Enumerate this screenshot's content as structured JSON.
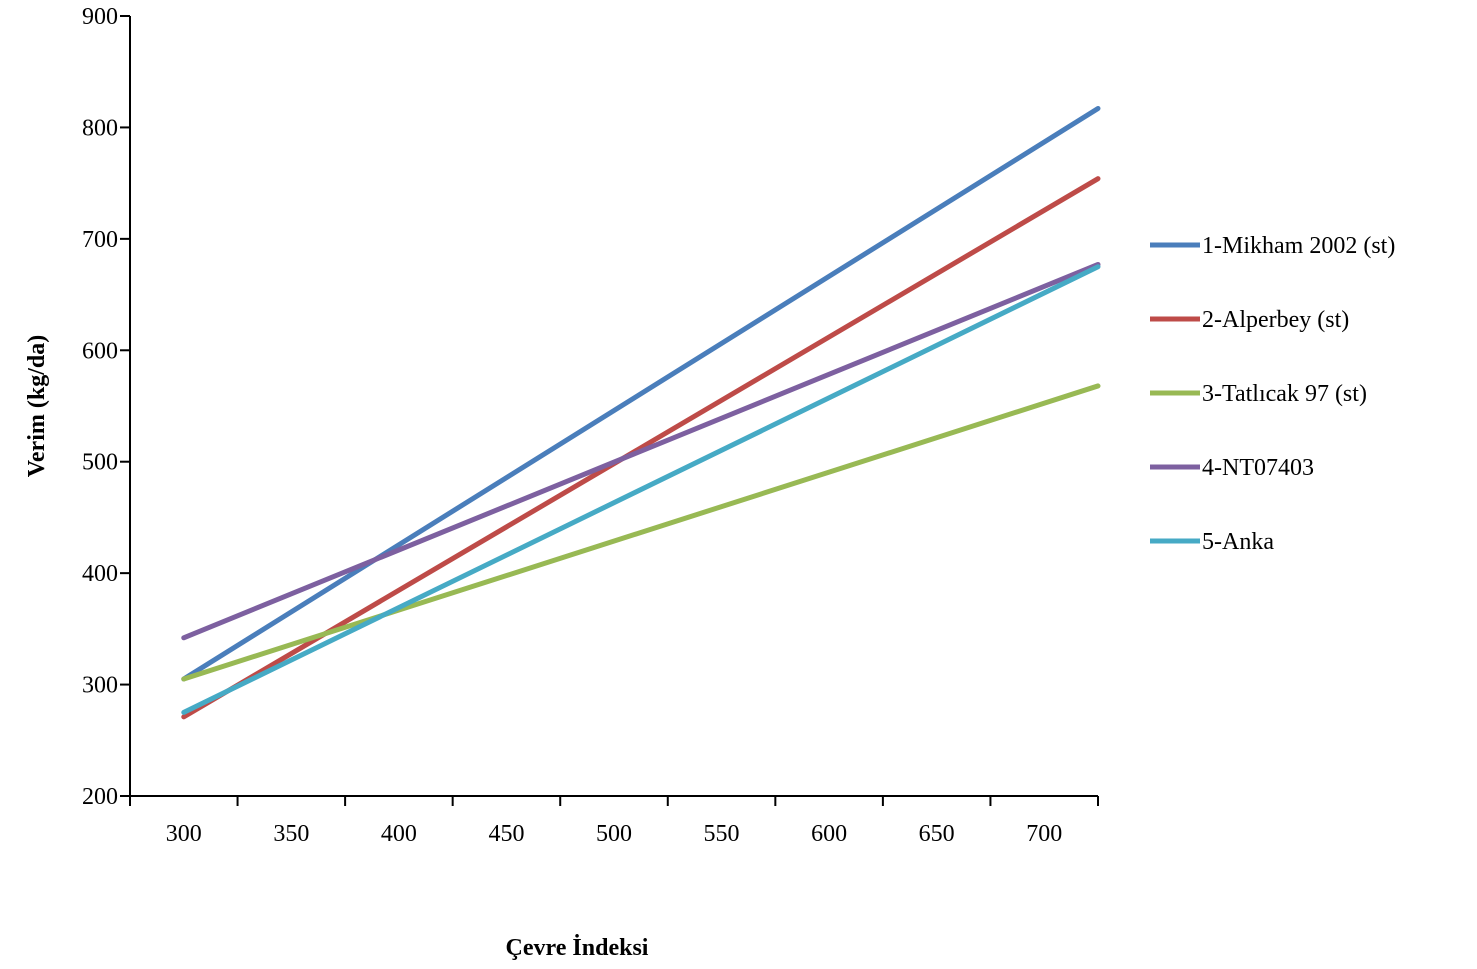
{
  "chart_data": {
    "type": "line",
    "title": "",
    "xlabel": "Çevre İndeksi",
    "ylabel": "Verim (kg/da)",
    "xlim": [
      275,
      725
    ],
    "ylim": [
      200,
      900
    ],
    "x_ticks": [
      300,
      350,
      400,
      450,
      500,
      550,
      600,
      650,
      700
    ],
    "y_ticks": [
      200,
      300,
      400,
      500,
      600,
      700,
      800,
      900
    ],
    "x_tick_labels": [
      "300",
      "350",
      "400",
      "450",
      "500",
      "550",
      "600",
      "650",
      "700"
    ],
    "y_tick_labels": [
      "200",
      "300",
      "400",
      "500",
      "600",
      "700",
      "800",
      "900"
    ],
    "grid": false,
    "legend_position": "right",
    "series": [
      {
        "name": "1-Mikham 2002 (st)",
        "color": "#4a7ebb",
        "x": [
          300,
          725
        ],
        "y": [
          305,
          817
        ]
      },
      {
        "name": "2-Alperbey (st)",
        "color": "#be4b48",
        "x": [
          300,
          725
        ],
        "y": [
          271,
          754
        ]
      },
      {
        "name": "3-Tatlıcak 97 (st)",
        "color": "#98b954",
        "x": [
          300,
          725
        ],
        "y": [
          305,
          568
        ]
      },
      {
        "name": "4-NT07403",
        "color": "#7d60a0",
        "x": [
          300,
          725
        ],
        "y": [
          342,
          677
        ]
      },
      {
        "name": "5-Anka",
        "color": "#46aac5",
        "x": [
          300,
          725
        ],
        "y": [
          275,
          675
        ]
      }
    ]
  }
}
